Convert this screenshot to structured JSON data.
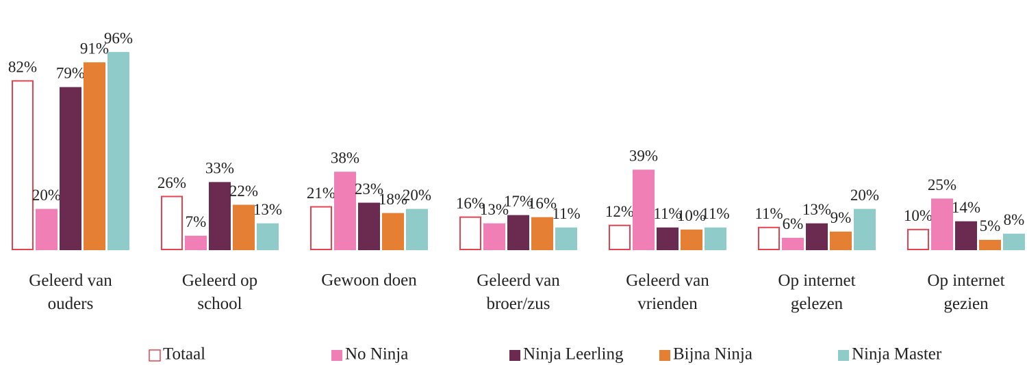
{
  "chart_data": {
    "type": "bar",
    "categories": [
      "Geleerd van ouders",
      "Geleerd op school",
      "Gewoon doen",
      "Geleerd van broer/zus",
      "Geleerd van vrienden",
      "Op internet gelezen",
      "Op internet gezien"
    ],
    "ylim": [
      0,
      100
    ],
    "series": [
      {
        "name": "Totaal",
        "color": "#e8414f",
        "outline": true,
        "values": [
          82,
          26,
          21,
          16,
          12,
          11,
          10
        ],
        "value_labels": [
          "82%",
          "26%",
          "21%",
          "16%",
          "12%",
          "11%",
          "10%"
        ]
      },
      {
        "name": "No Ninja",
        "color": "#ef7fb5",
        "values": [
          20,
          7,
          38,
          13,
          39,
          6,
          25
        ],
        "value_labels": [
          "20%",
          "7%",
          "38%",
          "13%",
          "39%",
          "6%",
          "25%"
        ]
      },
      {
        "name": "Ninja Leerling",
        "color": "#6b2a50",
        "values": [
          79,
          33,
          23,
          17,
          11,
          13,
          14
        ],
        "value_labels": [
          "79%",
          "33%",
          "23%",
          "17%",
          "11%",
          "13%",
          "14%"
        ]
      },
      {
        "name": "Bijna Ninja",
        "color": "#e57f33",
        "values": [
          91,
          22,
          18,
          16,
          10,
          9,
          5
        ],
        "value_labels": [
          "91%",
          "22%",
          "18%",
          "16%",
          "10%",
          "9%",
          "5%"
        ]
      },
      {
        "name": "Ninja Master",
        "color": "#8ecbc9",
        "values": [
          96,
          13,
          20,
          11,
          11,
          20,
          8
        ],
        "value_labels": [
          "96%",
          "13%",
          "20%",
          "11%",
          "11%",
          "20%",
          "8%"
        ]
      }
    ]
  }
}
